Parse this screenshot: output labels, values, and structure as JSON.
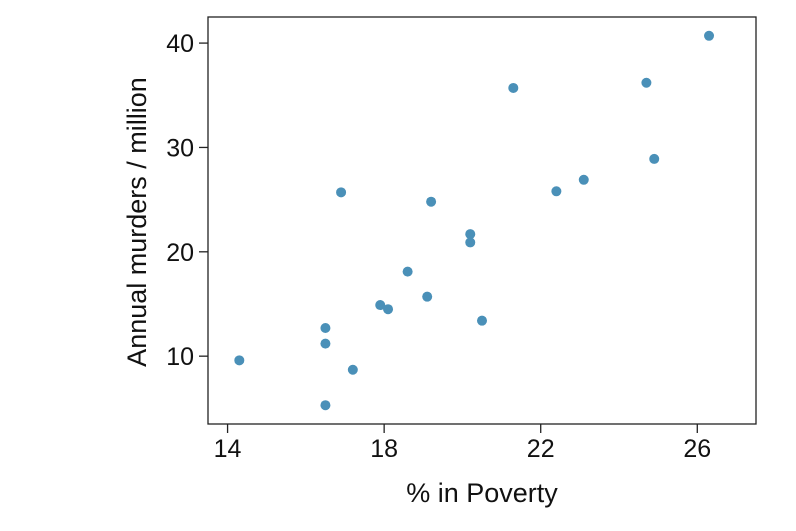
{
  "chart_data": {
    "type": "scatter",
    "title": "",
    "xlabel": "% in Poverty",
    "ylabel": "Annual murders / million",
    "xlim": [
      13.5,
      27.5
    ],
    "ylim": [
      3.5,
      42.5
    ],
    "xticks": [
      14,
      18,
      22,
      26
    ],
    "yticks": [
      10,
      20,
      30,
      40
    ],
    "grid": false,
    "legend": "none",
    "point_color": "#4a90b8",
    "points": [
      {
        "x": 14.3,
        "y": 9.6
      },
      {
        "x": 16.5,
        "y": 5.3
      },
      {
        "x": 16.5,
        "y": 11.2
      },
      {
        "x": 16.5,
        "y": 12.7
      },
      {
        "x": 16.9,
        "y": 25.7
      },
      {
        "x": 17.2,
        "y": 8.7
      },
      {
        "x": 17.9,
        "y": 14.9
      },
      {
        "x": 18.1,
        "y": 14.5
      },
      {
        "x": 18.6,
        "y": 18.1
      },
      {
        "x": 19.1,
        "y": 15.7
      },
      {
        "x": 19.2,
        "y": 24.8
      },
      {
        "x": 20.2,
        "y": 21.7
      },
      {
        "x": 20.2,
        "y": 20.9
      },
      {
        "x": 20.5,
        "y": 13.4
      },
      {
        "x": 21.3,
        "y": 35.7
      },
      {
        "x": 22.4,
        "y": 25.8
      },
      {
        "x": 23.1,
        "y": 26.9
      },
      {
        "x": 24.7,
        "y": 36.2
      },
      {
        "x": 24.9,
        "y": 28.9
      },
      {
        "x": 26.3,
        "y": 40.7
      }
    ]
  }
}
